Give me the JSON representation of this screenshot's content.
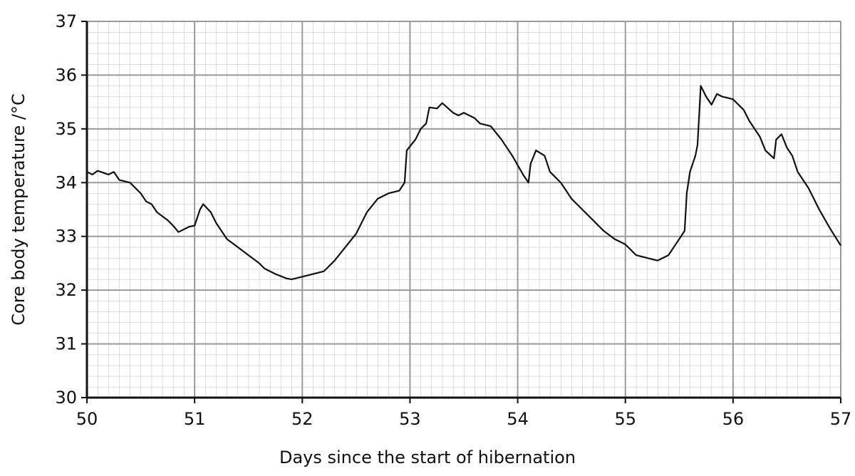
{
  "chart_data": {
    "type": "line",
    "x_label": "Days since the start of hibernation",
    "y_label": "Core body temperature /°C",
    "xlim": [
      50,
      57
    ],
    "xticks": [
      50,
      51,
      52,
      53,
      54,
      55,
      56,
      57
    ],
    "ylim": [
      30,
      37
    ],
    "yticks": [
      30,
      31,
      32,
      33,
      34,
      35,
      36,
      37
    ],
    "grid": true,
    "series": [
      {
        "color": "#111111",
        "x": [
          50.0,
          50.05,
          50.1,
          50.2,
          50.25,
          50.3,
          50.4,
          50.5,
          50.55,
          50.6,
          50.65,
          50.75,
          50.8,
          50.85,
          50.95,
          51.0,
          51.05,
          51.08,
          51.15,
          51.2,
          51.3,
          51.4,
          51.5,
          51.6,
          51.65,
          51.75,
          51.85,
          51.9,
          52.0,
          52.1,
          52.2,
          52.3,
          52.4,
          52.5,
          52.6,
          52.7,
          52.8,
          52.9,
          52.95,
          52.97,
          53.05,
          53.1,
          53.15,
          53.18,
          53.25,
          53.3,
          53.4,
          53.45,
          53.5,
          53.6,
          53.65,
          53.75,
          53.85,
          53.95,
          54.05,
          54.1,
          54.12,
          54.17,
          54.25,
          54.3,
          54.4,
          54.5,
          54.6,
          54.7,
          54.8,
          54.9,
          55.0,
          55.1,
          55.2,
          55.3,
          55.4,
          55.45,
          55.55,
          55.57,
          55.6,
          55.65,
          55.67,
          55.7,
          55.75,
          55.8,
          55.85,
          55.9,
          56.0,
          56.1,
          56.15,
          56.25,
          56.3,
          56.38,
          56.4,
          56.45,
          56.5,
          56.55,
          56.6,
          56.7,
          56.8,
          56.9,
          57.0
        ],
        "values": [
          34.2,
          34.15,
          34.22,
          34.15,
          34.2,
          34.05,
          34.0,
          33.8,
          33.65,
          33.6,
          33.45,
          33.3,
          33.2,
          33.08,
          33.18,
          33.2,
          33.5,
          33.6,
          33.45,
          33.25,
          32.95,
          32.8,
          32.65,
          32.5,
          32.4,
          32.3,
          32.22,
          32.2,
          32.25,
          32.3,
          32.35,
          32.55,
          32.8,
          33.05,
          33.45,
          33.7,
          33.8,
          33.85,
          34.0,
          34.6,
          34.8,
          35.0,
          35.1,
          35.4,
          35.38,
          35.48,
          35.3,
          35.25,
          35.3,
          35.2,
          35.1,
          35.05,
          34.8,
          34.5,
          34.15,
          34.0,
          34.35,
          34.6,
          34.5,
          34.2,
          34.0,
          33.7,
          33.5,
          33.3,
          33.1,
          32.95,
          32.85,
          32.65,
          32.6,
          32.55,
          32.65,
          32.8,
          33.1,
          33.8,
          34.2,
          34.5,
          34.7,
          35.8,
          35.6,
          35.45,
          35.65,
          35.6,
          35.55,
          35.35,
          35.15,
          34.85,
          34.6,
          34.45,
          34.8,
          34.9,
          34.65,
          34.5,
          34.2,
          33.9,
          33.5,
          33.15,
          32.83
        ]
      }
    ]
  }
}
